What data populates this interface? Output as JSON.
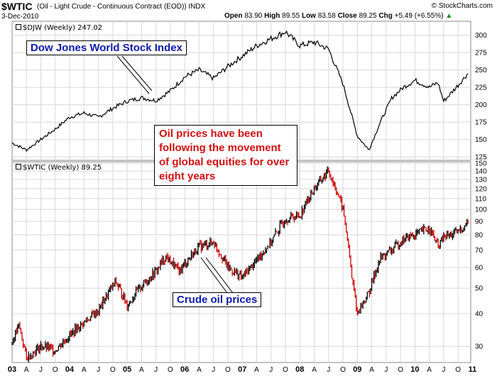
{
  "header": {
    "symbol": "$WTIC",
    "description": "(Oil - Light Crude - Continuous Contract (EOD)) INDX",
    "credit": "© StockCharts.com",
    "date": "3-Dec-2010",
    "open_label": "Open",
    "open": "83.90",
    "high_label": "High",
    "high": "89.55",
    "low_label": "Low",
    "low": "83.58",
    "close_label": "Close",
    "close": "89.25",
    "chg_label": "Chg",
    "chg": "+5.49 (+6.55%)",
    "chg_icon": "up-arrow-icon"
  },
  "colors": {
    "dow": "#000000",
    "oil_up": "#000000",
    "oil_down": "#cc0000",
    "grid": "#d8d8d8",
    "callout_blue": "#0a1aa8",
    "callout_red": "#d01010"
  },
  "annotations": {
    "dow_callout": "Dow Jones World Stock Index",
    "oil_callout": "Crude oil prices",
    "main_text": "Oil prices have been following the movement of global equities for over eight years"
  },
  "chart_data": [
    {
      "type": "line",
      "title": "$DJW (Weekly) 247.02",
      "yscale": "linear",
      "ylim": [
        120,
        320
      ],
      "yticks": [
        125,
        150,
        175,
        200,
        225,
        250,
        275,
        300
      ],
      "grid": true,
      "x": [
        2003.0,
        2003.25,
        2003.5,
        2003.75,
        2004.0,
        2004.25,
        2004.5,
        2004.75,
        2005.0,
        2005.25,
        2005.5,
        2005.75,
        2006.0,
        2006.25,
        2006.5,
        2006.75,
        2007.0,
        2007.25,
        2007.5,
        2007.75,
        2008.0,
        2008.25,
        2008.5,
        2008.75,
        2009.0,
        2009.2,
        2009.4,
        2009.6,
        2009.8,
        2010.0,
        2010.25,
        2010.4,
        2010.5,
        2010.75,
        2010.92
      ],
      "values": [
        145,
        135,
        150,
        165,
        182,
        188,
        182,
        195,
        205,
        210,
        206,
        220,
        240,
        250,
        238,
        255,
        270,
        285,
        295,
        305,
        285,
        290,
        280,
        230,
        155,
        135,
        175,
        210,
        225,
        235,
        225,
        232,
        205,
        228,
        245
      ]
    },
    {
      "type": "bar",
      "title": "$WTIC (Weekly) 89.25",
      "yscale": "log",
      "ylim": [
        26,
        152
      ],
      "yticks": [
        30,
        40,
        50,
        60,
        70,
        80,
        90,
        100,
        110,
        120,
        130,
        140,
        150
      ],
      "grid": true,
      "x": [
        2003.0,
        2003.12,
        2003.25,
        2003.5,
        2003.75,
        2004.0,
        2004.25,
        2004.5,
        2004.8,
        2005.0,
        2005.25,
        2005.5,
        2005.67,
        2005.9,
        2006.0,
        2006.25,
        2006.5,
        2006.75,
        2007.0,
        2007.25,
        2007.5,
        2007.75,
        2008.0,
        2008.25,
        2008.5,
        2008.75,
        2008.9,
        2009.0,
        2009.2,
        2009.4,
        2009.6,
        2009.8,
        2010.0,
        2010.25,
        2010.4,
        2010.5,
        2010.75,
        2010.92
      ],
      "values": [
        31,
        36,
        27,
        30,
        29,
        33,
        37,
        41,
        53,
        43,
        51,
        58,
        66,
        58,
        62,
        72,
        75,
        60,
        55,
        64,
        75,
        92,
        95,
        120,
        140,
        100,
        55,
        40,
        48,
        65,
        70,
        77,
        80,
        85,
        72,
        78,
        82,
        89
      ]
    }
  ],
  "xaxis": {
    "labels": [
      "03",
      "A",
      "J",
      "O",
      "04",
      "A",
      "J",
      "O",
      "05",
      "A",
      "J",
      "O",
      "06",
      "A",
      "J",
      "O",
      "07",
      "A",
      "J",
      "O",
      "08",
      "A",
      "J",
      "O",
      "09",
      "A",
      "J",
      "O",
      "10",
      "A",
      "J",
      "O",
      "11"
    ],
    "years": [
      2003.0,
      2003.25,
      2003.5,
      2003.75,
      2004.0,
      2004.25,
      2004.5,
      2004.75,
      2005.0,
      2005.25,
      2005.5,
      2005.75,
      2006.0,
      2006.25,
      2006.5,
      2006.75,
      2007.0,
      2007.25,
      2007.5,
      2007.75,
      2008.0,
      2008.25,
      2008.5,
      2008.75,
      2009.0,
      2009.25,
      2009.5,
      2009.75,
      2010.0,
      2010.25,
      2010.5,
      2010.75,
      2011.0
    ]
  }
}
